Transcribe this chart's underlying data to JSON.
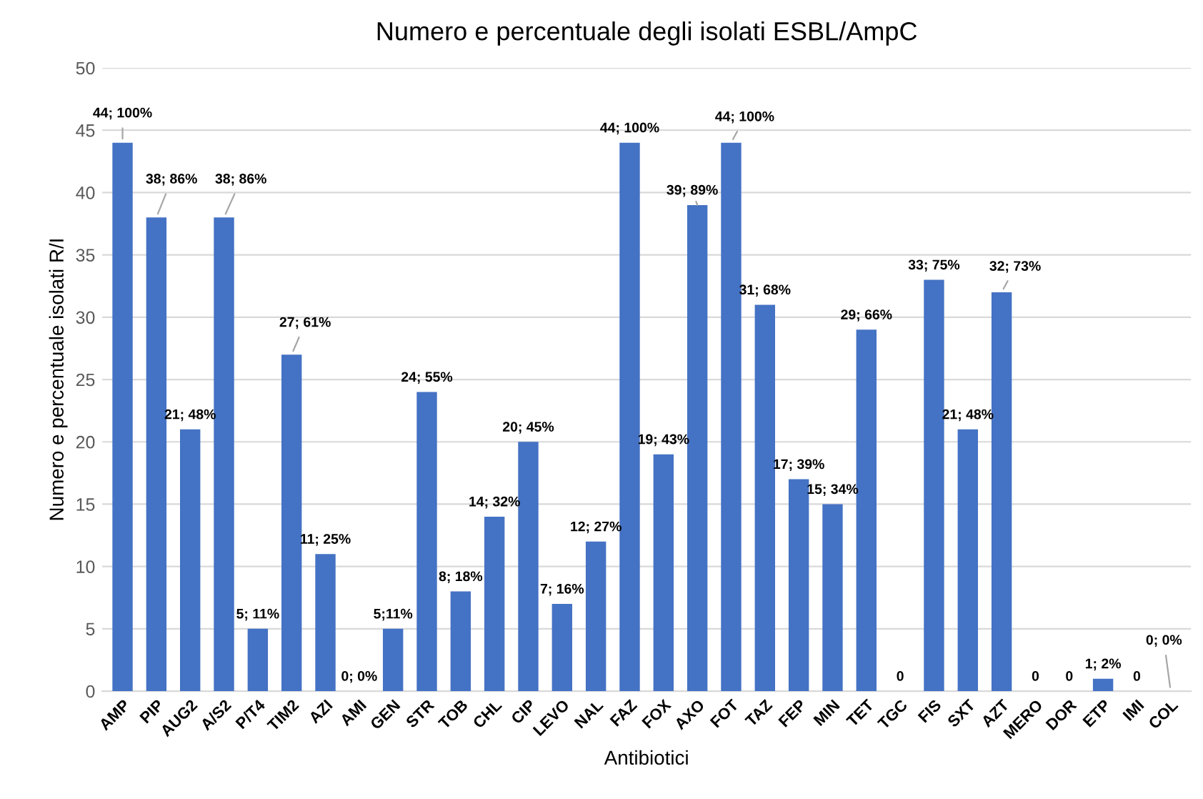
{
  "chart_data": {
    "type": "bar",
    "title": "Numero e percentuale degli isolati ESBL/AmpC",
    "xlabel": "Antibiotici",
    "ylabel": "Numero e percentuale isolati R/I",
    "categories": [
      "AMP",
      "PIP",
      "AUG2",
      "A/S2",
      "P/T4",
      "TIM2",
      "AZI",
      "AMI",
      "GEN",
      "STR",
      "TOB",
      "CHL",
      "CIP",
      "LEVO",
      "NAL",
      "FAZ",
      "FOX",
      "AXO",
      "FOT",
      "TAZ",
      "FEP",
      "MIN",
      "TET",
      "TGC",
      "FIS",
      "SXT",
      "AZT",
      "MERO",
      "DOR",
      "ETP",
      "IMI",
      "COL"
    ],
    "values": [
      44,
      38,
      21,
      38,
      5,
      27,
      11,
      0,
      5,
      24,
      8,
      14,
      20,
      7,
      12,
      44,
      19,
      39,
      44,
      31,
      17,
      15,
      29,
      0,
      33,
      21,
      32,
      0,
      0,
      1,
      0,
      0
    ],
    "value_labels": [
      "44; 100%",
      "38; 86%",
      "21; 48%",
      "38; 86%",
      "5; 11%",
      "27; 61%",
      "11; 25%",
      "0; 0%",
      "5;11%",
      "24; 55%",
      "8; 18%",
      "14; 32%",
      "20; 45%",
      "7; 16%",
      "12; 27%",
      "44; 100%",
      "19; 43%",
      "39; 89%",
      "44; 100%",
      "31; 68%",
      "17; 39%",
      "15; 34%",
      "29; 66%",
      "0",
      "33; 75%",
      "21; 48%",
      "32; 73%",
      "0",
      "0",
      "1; 2%",
      "0",
      "0; 0%"
    ],
    "color": "#4472c4",
    "ylim": [
      0,
      50
    ],
    "yticks": [
      0,
      5,
      10,
      15,
      20,
      25,
      30,
      35,
      40,
      45,
      50
    ],
    "grid": "y"
  }
}
